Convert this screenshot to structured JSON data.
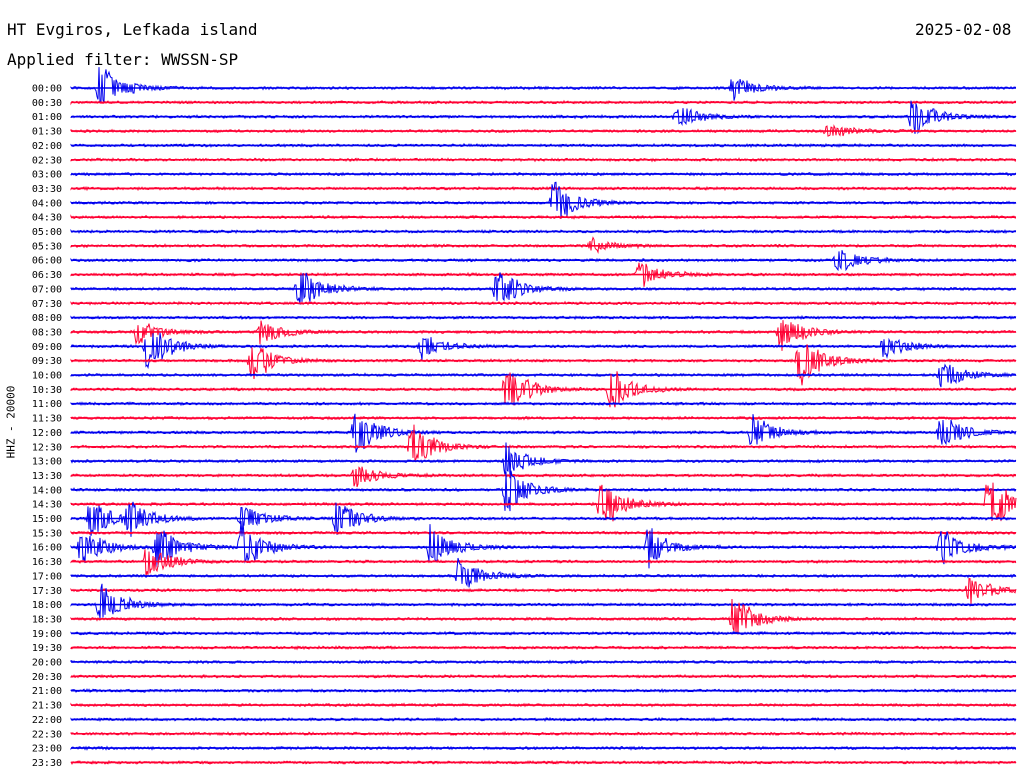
{
  "header": {
    "station": "HT Evgiros, Lefkada island",
    "date": "2025-02-08",
    "filter": "Applied filter: WWSSN-SP"
  },
  "side_label": "HHZ - 20000",
  "chart_data": {
    "type": "line",
    "subtype": "helicorder",
    "colors": [
      "#0000ee",
      "#ff0033"
    ],
    "row_tick_labels": [
      "00:00",
      "00:30",
      "01:00",
      "01:30",
      "02:00",
      "02:30",
      "03:00",
      "03:30",
      "04:00",
      "04:30",
      "05:00",
      "05:30",
      "06:00",
      "06:30",
      "07:00",
      "07:30",
      "08:00",
      "08:30",
      "09:00",
      "09:30",
      "10:00",
      "10:30",
      "11:00",
      "11:30",
      "12:00",
      "12:30",
      "13:00",
      "13:30",
      "14:00",
      "14:30",
      "15:00",
      "15:30",
      "16:00",
      "16:30",
      "17:00",
      "17:30",
      "18:00",
      "18:30",
      "19:00",
      "19:30",
      "20:00",
      "20:30",
      "21:00",
      "21:30",
      "22:00",
      "22:30",
      "23:00",
      "23:30"
    ],
    "row_minutes": 30,
    "events": [
      {
        "row": 0,
        "t": 0.03,
        "amp": 1.0
      },
      {
        "row": 0,
        "t": 0.7,
        "amp": 0.5
      },
      {
        "row": 2,
        "t": 0.64,
        "amp": 0.5
      },
      {
        "row": 2,
        "t": 0.89,
        "amp": 0.9
      },
      {
        "row": 3,
        "t": 0.8,
        "amp": 0.3
      },
      {
        "row": 8,
        "t": 0.51,
        "amp": 1.0
      },
      {
        "row": 11,
        "t": 0.55,
        "amp": 0.3
      },
      {
        "row": 12,
        "t": 0.81,
        "amp": 0.6
      },
      {
        "row": 13,
        "t": 0.6,
        "amp": 0.6
      },
      {
        "row": 14,
        "t": 0.24,
        "amp": 0.9
      },
      {
        "row": 14,
        "t": 0.45,
        "amp": 0.9
      },
      {
        "row": 17,
        "t": 0.07,
        "amp": 0.5
      },
      {
        "row": 17,
        "t": 0.2,
        "amp": 0.5
      },
      {
        "row": 17,
        "t": 0.75,
        "amp": 0.8
      },
      {
        "row": 18,
        "t": 0.08,
        "amp": 1.0
      },
      {
        "row": 18,
        "t": 0.37,
        "amp": 0.5
      },
      {
        "row": 18,
        "t": 0.86,
        "amp": 0.5
      },
      {
        "row": 19,
        "t": 0.19,
        "amp": 0.9
      },
      {
        "row": 19,
        "t": 0.77,
        "amp": 1.2
      },
      {
        "row": 20,
        "t": 0.92,
        "amp": 0.6
      },
      {
        "row": 21,
        "t": 0.46,
        "amp": 1.0
      },
      {
        "row": 21,
        "t": 0.57,
        "amp": 0.9
      },
      {
        "row": 24,
        "t": 0.3,
        "amp": 1.0
      },
      {
        "row": 24,
        "t": 0.72,
        "amp": 0.8
      },
      {
        "row": 24,
        "t": 0.92,
        "amp": 0.8
      },
      {
        "row": 25,
        "t": 0.36,
        "amp": 1.0
      },
      {
        "row": 26,
        "t": 0.46,
        "amp": 0.7
      },
      {
        "row": 27,
        "t": 0.3,
        "amp": 0.5
      },
      {
        "row": 28,
        "t": 0.46,
        "amp": 1.0
      },
      {
        "row": 29,
        "t": 0.56,
        "amp": 1.1
      },
      {
        "row": 29,
        "t": 0.97,
        "amp": 1.3
      },
      {
        "row": 30,
        "t": 0.02,
        "amp": 0.8
      },
      {
        "row": 30,
        "t": 0.06,
        "amp": 0.8
      },
      {
        "row": 30,
        "t": 0.18,
        "amp": 0.6
      },
      {
        "row": 30,
        "t": 0.28,
        "amp": 0.8
      },
      {
        "row": 32,
        "t": 0.01,
        "amp": 0.9
      },
      {
        "row": 32,
        "t": 0.09,
        "amp": 1.0
      },
      {
        "row": 32,
        "t": 0.18,
        "amp": 1.0
      },
      {
        "row": 32,
        "t": 0.38,
        "amp": 1.0
      },
      {
        "row": 32,
        "t": 0.61,
        "amp": 0.8
      },
      {
        "row": 32,
        "t": 0.92,
        "amp": 0.9
      },
      {
        "row": 33,
        "t": 0.08,
        "amp": 0.7
      },
      {
        "row": 34,
        "t": 0.41,
        "amp": 0.8
      },
      {
        "row": 35,
        "t": 0.95,
        "amp": 0.6
      },
      {
        "row": 36,
        "t": 0.03,
        "amp": 0.9
      },
      {
        "row": 37,
        "t": 0.7,
        "amp": 1.0
      }
    ]
  }
}
